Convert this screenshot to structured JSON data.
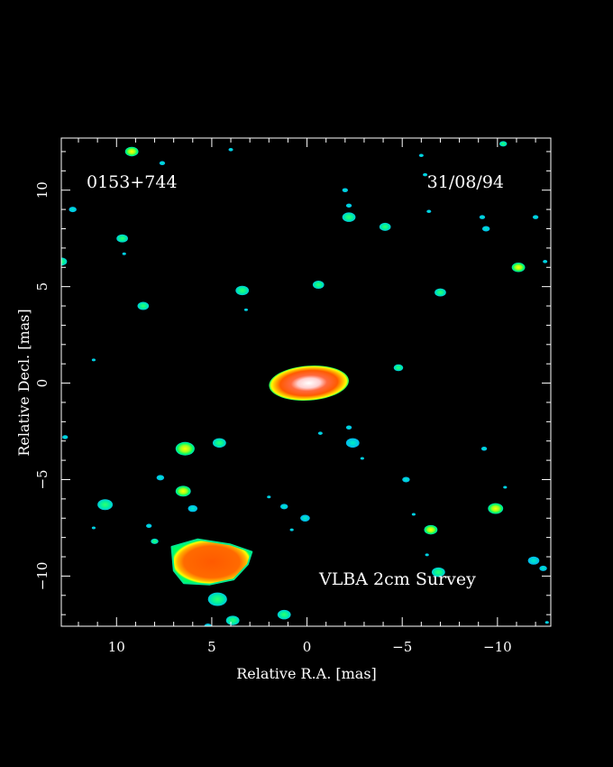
{
  "chart_data": {
    "type": "heatmap",
    "title": "",
    "source_name": "0153+744",
    "epoch": "31/08/94",
    "survey_label": "VLBA 2cm Survey",
    "xlabel": "Relative R.A. [mas]",
    "ylabel": "Relative Decl. [mas]",
    "xlim": [
      12.9,
      -12.8
    ],
    "ylim": [
      -12.6,
      12.7
    ],
    "x_ticks": [
      10,
      5,
      0,
      -5,
      -10
    ],
    "x_tick_labels": [
      "10",
      "5",
      "0",
      "−5",
      "−10"
    ],
    "y_ticks": [
      10,
      5,
      0,
      -5,
      -10
    ],
    "y_tick_labels": [
      "10",
      "5",
      "0",
      "−5",
      "−10"
    ],
    "minor_tick_step": 1,
    "grid": false,
    "colors": {
      "background": "#000000",
      "frame": "#ffffff",
      "level_faint": "#00e8c8",
      "level_low": "#00ff66",
      "level_mid": "#ffff00",
      "level_high": "#ff5a00",
      "level_peak": "#ffffff"
    },
    "components": [
      {
        "name": "core",
        "x": -0.1,
        "y": 0.0,
        "rx": 2.1,
        "ry": 0.9,
        "peak": 1.0
      },
      {
        "name": "south-east-component",
        "x": 5.0,
        "y": -9.2,
        "rx": 2.1,
        "ry": 1.3,
        "peak": 0.75
      }
    ],
    "noise_patches": [
      {
        "x": 9.2,
        "y": 12.0,
        "r": 0.35,
        "level": 2
      },
      {
        "x": 7.6,
        "y": 11.4,
        "r": 0.15,
        "level": 0
      },
      {
        "x": 4.0,
        "y": 12.1,
        "r": 0.12,
        "level": 0
      },
      {
        "x": 12.3,
        "y": 9.0,
        "r": 0.2,
        "level": 0
      },
      {
        "x": 9.7,
        "y": 7.5,
        "r": 0.3,
        "level": 1
      },
      {
        "x": 9.6,
        "y": 6.7,
        "r": 0.1,
        "level": 0
      },
      {
        "x": 12.9,
        "y": 6.3,
        "r": 0.3,
        "level": 1
      },
      {
        "x": 8.6,
        "y": 4.0,
        "r": 0.3,
        "level": 1
      },
      {
        "x": 3.4,
        "y": 4.8,
        "r": 0.35,
        "level": 1
      },
      {
        "x": 3.2,
        "y": 3.8,
        "r": 0.1,
        "level": 0
      },
      {
        "x": -0.6,
        "y": 5.1,
        "r": 0.3,
        "level": 1
      },
      {
        "x": -2.0,
        "y": 10.0,
        "r": 0.15,
        "level": 0
      },
      {
        "x": -2.2,
        "y": 9.2,
        "r": 0.15,
        "level": 0
      },
      {
        "x": -2.2,
        "y": 8.6,
        "r": 0.35,
        "level": 1
      },
      {
        "x": -4.1,
        "y": 8.1,
        "r": 0.3,
        "level": 1
      },
      {
        "x": -6.0,
        "y": 11.8,
        "r": 0.12,
        "level": 0
      },
      {
        "x": -6.2,
        "y": 10.8,
        "r": 0.12,
        "level": 0
      },
      {
        "x": -6.4,
        "y": 8.9,
        "r": 0.12,
        "level": 0
      },
      {
        "x": -9.2,
        "y": 8.6,
        "r": 0.15,
        "level": 0
      },
      {
        "x": -9.4,
        "y": 8.0,
        "r": 0.2,
        "level": 0
      },
      {
        "x": -10.3,
        "y": 12.4,
        "r": 0.2,
        "level": 1
      },
      {
        "x": -12.0,
        "y": 8.6,
        "r": 0.15,
        "level": 0
      },
      {
        "x": -11.1,
        "y": 6.0,
        "r": 0.35,
        "level": 2
      },
      {
        "x": -12.5,
        "y": 6.3,
        "r": 0.12,
        "level": 0
      },
      {
        "x": -7.0,
        "y": 4.7,
        "r": 0.3,
        "level": 1
      },
      {
        "x": -4.8,
        "y": 0.8,
        "r": 0.25,
        "level": 1
      },
      {
        "x": 11.2,
        "y": 1.2,
        "r": 0.1,
        "level": 0
      },
      {
        "x": 12.7,
        "y": -2.8,
        "r": 0.15,
        "level": 0
      },
      {
        "x": 6.4,
        "y": -3.4,
        "r": 0.5,
        "level": 2
      },
      {
        "x": 4.6,
        "y": -3.1,
        "r": 0.35,
        "level": 1
      },
      {
        "x": 7.7,
        "y": -4.9,
        "r": 0.2,
        "level": 0
      },
      {
        "x": 6.5,
        "y": -5.6,
        "r": 0.4,
        "level": 2
      },
      {
        "x": 6.0,
        "y": -6.5,
        "r": 0.25,
        "level": 0
      },
      {
        "x": 10.6,
        "y": -6.3,
        "r": 0.4,
        "level": 1
      },
      {
        "x": 11.2,
        "y": -7.5,
        "r": 0.1,
        "level": 0
      },
      {
        "x": 8.3,
        "y": -7.4,
        "r": 0.15,
        "level": 0
      },
      {
        "x": 8.0,
        "y": -8.2,
        "r": 0.2,
        "level": 1
      },
      {
        "x": 4.7,
        "y": -11.2,
        "r": 0.5,
        "level": 1
      },
      {
        "x": 3.9,
        "y": -12.3,
        "r": 0.35,
        "level": 1
      },
      {
        "x": 2.0,
        "y": -5.9,
        "r": 0.1,
        "level": 0
      },
      {
        "x": 1.2,
        "y": -6.4,
        "r": 0.2,
        "level": 0
      },
      {
        "x": 0.1,
        "y": -7.0,
        "r": 0.25,
        "level": 0
      },
      {
        "x": 0.8,
        "y": -7.6,
        "r": 0.1,
        "level": 0
      },
      {
        "x": -0.7,
        "y": -2.6,
        "r": 0.12,
        "level": 0
      },
      {
        "x": -2.2,
        "y": -2.3,
        "r": 0.15,
        "level": 0
      },
      {
        "x": -2.4,
        "y": -3.1,
        "r": 0.35,
        "level": 0
      },
      {
        "x": -2.9,
        "y": -3.9,
        "r": 0.1,
        "level": 0
      },
      {
        "x": -5.2,
        "y": -5.0,
        "r": 0.2,
        "level": 0
      },
      {
        "x": -5.6,
        "y": -6.8,
        "r": 0.1,
        "level": 0
      },
      {
        "x": -6.5,
        "y": -7.6,
        "r": 0.35,
        "level": 2
      },
      {
        "x": -6.3,
        "y": -8.9,
        "r": 0.1,
        "level": 0
      },
      {
        "x": -6.9,
        "y": -9.8,
        "r": 0.35,
        "level": 1
      },
      {
        "x": -9.3,
        "y": -3.4,
        "r": 0.15,
        "level": 0
      },
      {
        "x": -9.9,
        "y": -6.5,
        "r": 0.4,
        "level": 2
      },
      {
        "x": -10.4,
        "y": -5.4,
        "r": 0.1,
        "level": 0
      },
      {
        "x": -11.9,
        "y": -9.2,
        "r": 0.3,
        "level": 0
      },
      {
        "x": -12.4,
        "y": -9.6,
        "r": 0.2,
        "level": 0
      },
      {
        "x": -12.6,
        "y": -12.4,
        "r": 0.1,
        "level": 0
      },
      {
        "x": 1.2,
        "y": -12.0,
        "r": 0.35,
        "level": 1
      },
      {
        "x": 5.2,
        "y": -12.6,
        "r": 0.2,
        "level": 0
      }
    ]
  }
}
